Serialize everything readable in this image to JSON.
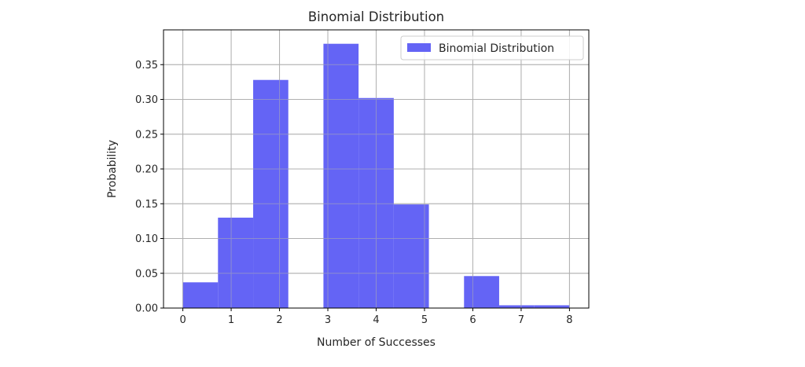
{
  "chart_data": {
    "type": "bar",
    "title": "Binomial Distribution",
    "xlabel": "Number of Successes",
    "ylabel": "Probability",
    "xlim": [
      -0.4,
      8.4
    ],
    "ylim": [
      0,
      0.4
    ],
    "xticks": [
      0,
      1,
      2,
      3,
      4,
      5,
      6,
      7,
      8
    ],
    "yticks": [
      0.0,
      0.05,
      0.1,
      0.15,
      0.2,
      0.25,
      0.3,
      0.35
    ],
    "ytick_labels": [
      "0.00",
      "0.05",
      "0.10",
      "0.15",
      "0.20",
      "0.25",
      "0.30",
      "0.35"
    ],
    "grid": true,
    "legend_position": "top-right",
    "series": [
      {
        "name": "Binomial Distribution",
        "color": "#6464f5",
        "bin_edges": [
          0,
          0.727,
          1.455,
          2.182,
          2.909,
          3.636,
          4.364,
          5.091,
          5.818,
          6.545,
          7.273,
          8
        ],
        "values": [
          0.037,
          0.13,
          0.328,
          0.0,
          0.38,
          0.302,
          0.149,
          0.0,
          0.046,
          0.004,
          0.004
        ]
      }
    ]
  }
}
